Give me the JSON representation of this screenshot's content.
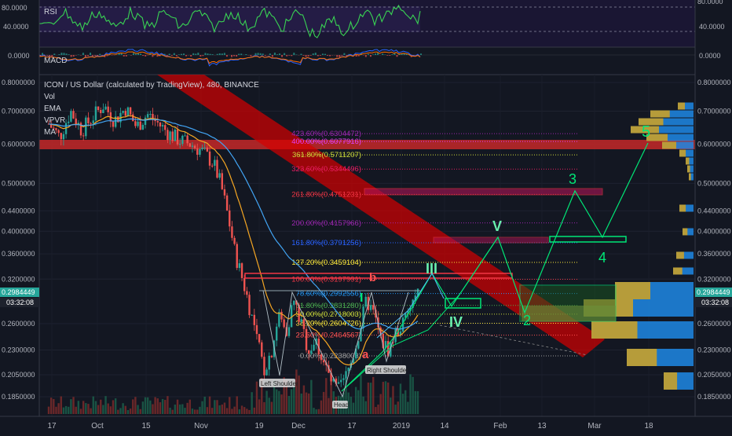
{
  "pair_title": "ICON / US Dollar (calculated by TradingView), 480, BINANCE",
  "indicators": {
    "rsi": "RSI",
    "macd": "MACD",
    "vol": "Vol",
    "ema": "EMA",
    "vpvr": "VPVR",
    "ma": "MA"
  },
  "rsi_axis": [
    "80.0000",
    "40.0000"
  ],
  "macd_axis": [
    "0.0000",
    "0.0000"
  ],
  "price_axis": [
    "0.8000000",
    "0.7000000",
    "0.6000000",
    "0.5000000",
    "0.4400000",
    "0.4000000",
    "0.3600000",
    "0.3200000",
    "0.2600000",
    "0.2300000",
    "0.2050000",
    "0.1850000"
  ],
  "price_badge": {
    "value": "0.2984449",
    "time": "03:32:08"
  },
  "x_axis": [
    "17",
    "Oct",
    "15",
    "Nov",
    "19",
    "Dec",
    "17",
    "2019",
    "14",
    "Feb",
    "13",
    "Mar",
    "18"
  ],
  "fib_levels": [
    {
      "label": "423.60%(0.6304472)",
      "price": 0.6304472,
      "color": "#9c27b0"
    },
    {
      "label": "400.00%(0.6077916)",
      "price": 0.6077916,
      "color": "#e040fb"
    },
    {
      "label": "361.80%(0.5711207)",
      "price": 0.5711207,
      "color": "#cddc39"
    },
    {
      "label": "323.60%(0.5344496)",
      "price": 0.5344496,
      "color": "#e91e63"
    },
    {
      "label": "261.80%(0.4751231)",
      "price": 0.4751231,
      "color": "#f23645"
    },
    {
      "label": "200.00%(0.4157966)",
      "price": 0.4157966,
      "color": "#9c27b0"
    },
    {
      "label": "161.80%(0.3791256)",
      "price": 0.3791256,
      "color": "#2962ff"
    },
    {
      "label": "127.20%(0.3459104)",
      "price": 0.3459104,
      "color": "#ffeb3b"
    },
    {
      "label": "100.00%(0.3197991)",
      "price": 0.3197991,
      "color": "#f23645"
    },
    {
      "label": "78.60%(0.2992556)",
      "price": 0.2992556,
      "color": "#2196f3"
    },
    {
      "label": "61.80%(0.2831280)",
      "price": 0.283128,
      "color": "#4caf50"
    },
    {
      "label": "50.00%(0.2718003)",
      "price": 0.2718003,
      "color": "#cddc39"
    },
    {
      "label": "38.20%(0.2604726)",
      "price": 0.2604726,
      "color": "#ffeb3b"
    },
    {
      "label": "23.60%(0.2464567)",
      "price": 0.2464567,
      "color": "#ff5252"
    },
    {
      "label": "0.00%(0.2238003)",
      "price": 0.2238003,
      "color": "#9e9e9e"
    }
  ],
  "wave_labels": {
    "w1": "I",
    "w3": "III",
    "w4": "IV",
    "w5": "V",
    "n2": "2",
    "n3": "3",
    "n4": "4",
    "n5": "5",
    "a": "a",
    "b": "b"
  },
  "pattern_labels": {
    "left_shoulder": "Left Shoulder",
    "head": "Head",
    "right_shoulder": "Right Shoulder"
  },
  "colors": {
    "bg": "#131722",
    "up": "#26a69a",
    "down": "#ef5350",
    "wave": "#00e676",
    "rsi": "#39d353",
    "resistance": "#d50000"
  },
  "chart_data": {
    "type": "candlestick",
    "title": "ICON / US Dollar (calculated by TradingView), 480, BINANCE",
    "y_scale": "log",
    "ylim": [
      0.175,
      0.85
    ],
    "x_ticks": [
      "17",
      "Oct",
      "15",
      "Nov",
      "19",
      "Dec",
      "17",
      "2019",
      "14",
      "Feb",
      "13",
      "Mar",
      "18"
    ],
    "price_path": [
      [
        0,
        0.66
      ],
      [
        6,
        0.62
      ],
      [
        12,
        0.7
      ],
      [
        18,
        0.64
      ],
      [
        24,
        0.68
      ],
      [
        30,
        0.72
      ],
      [
        36,
        0.67
      ],
      [
        42,
        0.71
      ],
      [
        48,
        0.65
      ],
      [
        54,
        0.69
      ],
      [
        60,
        0.66
      ],
      [
        66,
        0.63
      ],
      [
        72,
        0.61
      ],
      [
        78,
        0.6
      ],
      [
        84,
        0.58
      ],
      [
        90,
        0.55
      ],
      [
        94,
        0.5
      ],
      [
        98,
        0.43
      ],
      [
        102,
        0.36
      ],
      [
        106,
        0.32
      ],
      [
        110,
        0.28
      ],
      [
        114,
        0.24
      ],
      [
        118,
        0.21
      ],
      [
        122,
        0.23
      ],
      [
        126,
        0.27
      ],
      [
        130,
        0.25
      ],
      [
        134,
        0.29
      ],
      [
        138,
        0.26
      ],
      [
        142,
        0.23
      ],
      [
        146,
        0.24
      ],
      [
        150,
        0.22
      ],
      [
        154,
        0.2
      ],
      [
        158,
        0.19
      ],
      [
        162,
        0.2
      ],
      [
        166,
        0.22
      ],
      [
        170,
        0.25
      ],
      [
        174,
        0.29
      ],
      [
        178,
        0.27
      ],
      [
        182,
        0.24
      ],
      [
        186,
        0.23
      ],
      [
        190,
        0.25
      ],
      [
        194,
        0.26
      ],
      [
        198,
        0.28
      ],
      [
        202,
        0.3
      ]
    ]
  }
}
